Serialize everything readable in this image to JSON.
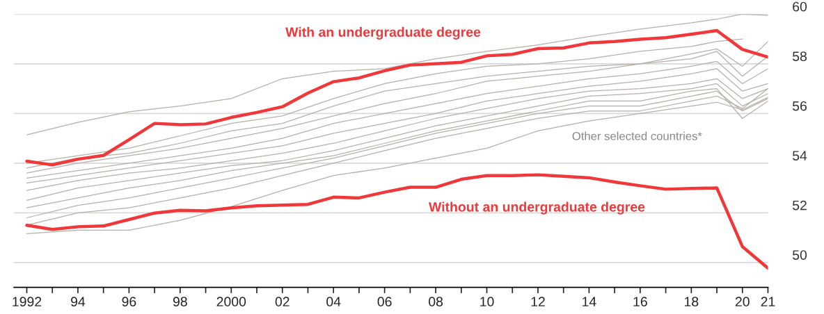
{
  "chart_data": {
    "type": "line",
    "x": [
      1992,
      1993,
      1994,
      1995,
      1996,
      1997,
      1998,
      1999,
      2000,
      2001,
      2002,
      2003,
      2004,
      2005,
      2006,
      2007,
      2008,
      2009,
      2010,
      2011,
      2012,
      2013,
      2014,
      2015,
      2016,
      2017,
      2018,
      2019,
      2020,
      2021
    ],
    "series": [
      {
        "color": "#b5b0a5",
        "x": [
          1992,
          1994,
          1996,
          1998,
          2000,
          2002,
          2004,
          2006,
          2008,
          2010,
          2012,
          2014,
          2016,
          2018,
          2019,
          2020,
          2021
        ],
        "values": [
          55.14,
          55.64,
          56.07,
          56.3,
          56.6,
          57.4,
          57.7,
          57.8,
          58.2,
          58.5,
          58.76,
          59.1,
          59.4,
          59.65,
          59.8,
          60.0,
          59.95
        ]
      },
      {
        "color": "#b5b0a5",
        "x": [
          1992,
          1994,
          1996,
          1998,
          2000,
          2002,
          2004,
          2006,
          2008,
          2010,
          2012,
          2014,
          2016,
          2018,
          2019,
          2020
        ],
        "values": [
          54.0,
          54.3,
          54.6,
          55.1,
          55.6,
          55.9,
          56.6,
          57.2,
          57.6,
          57.9,
          58.0,
          58.2,
          58.5,
          58.7,
          58.9,
          59.0
        ]
      },
      {
        "color": "#b5b0a5",
        "x": [
          1992,
          1994,
          1996,
          1998,
          2000,
          2002,
          2004,
          2006,
          2008,
          2010,
          2012,
          2014,
          2016,
          2018,
          2019,
          2020,
          2021
        ],
        "values": [
          53.8,
          54.2,
          54.4,
          54.8,
          55.3,
          55.6,
          56.3,
          56.9,
          57.2,
          57.5,
          57.7,
          57.9,
          58.0,
          58.4,
          58.6,
          57.9,
          58.9
        ]
      },
      {
        "color": "#b5b0a5",
        "x": [
          1992,
          1994,
          1996,
          1998,
          2000,
          2002,
          2004,
          2006,
          2008,
          2010,
          2012,
          2014,
          2016,
          2018,
          2019,
          2020,
          2021
        ],
        "values": [
          53.6,
          54.0,
          54.3,
          54.6,
          55.0,
          55.4,
          55.9,
          56.4,
          56.8,
          57.3,
          57.5,
          57.7,
          58.0,
          58.2,
          58.5,
          57.5,
          58.3
        ]
      },
      {
        "color": "#b5b0a5",
        "x": [
          1992,
          1994,
          1996,
          1998,
          2000,
          2002,
          2004,
          2006,
          2008,
          2010,
          2012,
          2014,
          2016,
          2018,
          2019,
          2020,
          2021
        ],
        "values": [
          53.4,
          53.7,
          54.0,
          54.3,
          54.6,
          55.0,
          55.6,
          56.0,
          56.4,
          56.8,
          57.1,
          57.4,
          57.6,
          57.9,
          58.1,
          57.2,
          57.8
        ]
      },
      {
        "color": "#b5b0a5",
        "x": [
          1992,
          1994,
          1996,
          1998,
          2000,
          2002,
          2004,
          2006,
          2008,
          2010,
          2012,
          2014,
          2016,
          2018,
          2019,
          2020,
          2021
        ],
        "values": [
          53.2,
          53.5,
          53.8,
          54.1,
          54.4,
          54.7,
          55.2,
          55.6,
          56.0,
          56.5,
          56.8,
          57.1,
          57.3,
          57.6,
          57.8,
          56.9,
          57.2
        ]
      },
      {
        "color": "#b5b0a5",
        "x": [
          1992,
          1994,
          1996,
          1998,
          2000,
          2002,
          2004,
          2006,
          2008,
          2010,
          2012,
          2014,
          2016,
          2018,
          2019,
          2020,
          2021
        ],
        "values": [
          52.9,
          53.3,
          53.6,
          53.8,
          54.1,
          54.4,
          54.8,
          55.3,
          55.8,
          56.2,
          56.6,
          56.9,
          57.0,
          57.2,
          57.4,
          56.6,
          57.0
        ]
      },
      {
        "color": "#b5b0a5",
        "x": [
          1992,
          1994,
          1996,
          1998,
          2000,
          2002,
          2004,
          2006,
          2008,
          2010,
          2012,
          2014,
          2016,
          2018,
          2019,
          2020,
          2021
        ],
        "values": [
          52.5,
          53.0,
          53.3,
          53.6,
          53.9,
          54.1,
          54.5,
          55.0,
          55.5,
          55.9,
          56.3,
          56.7,
          56.8,
          57.0,
          57.2,
          56.3,
          56.8
        ]
      },
      {
        "color": "#b5b0a5",
        "x": [
          1992,
          1994,
          1996,
          1998,
          2000,
          2002,
          2004,
          2006,
          2008,
          2010,
          2012,
          2014,
          2016,
          2018,
          2019,
          2020,
          2021
        ],
        "values": [
          52.2,
          52.6,
          53.0,
          53.3,
          53.7,
          54.0,
          54.3,
          54.8,
          55.3,
          55.7,
          56.1,
          56.5,
          56.5,
          56.9,
          57.0,
          55.8,
          56.5
        ]
      },
      {
        "color": "#b5b0a5",
        "x": [
          1992,
          1994,
          1996,
          1998,
          2000,
          2002,
          2004,
          2006,
          2008,
          2010,
          2012,
          2014,
          2016,
          2018,
          2019,
          2020,
          2021
        ],
        "values": [
          51.8,
          52.3,
          52.6,
          53.0,
          53.4,
          53.8,
          54.2,
          54.7,
          55.2,
          55.6,
          56.0,
          56.3,
          56.3,
          56.7,
          56.9,
          56.1,
          56.6
        ]
      },
      {
        "color": "#b5b0a5",
        "x": [
          1992,
          1994,
          1996,
          1998,
          2000,
          2002,
          2004,
          2006,
          2008,
          2010,
          2012,
          2014,
          2016,
          2018,
          2019,
          2020,
          2021
        ],
        "values": [
          51.5,
          52.0,
          52.2,
          52.6,
          53.0,
          53.5,
          54.0,
          54.5,
          55.0,
          55.4,
          55.8,
          56.1,
          56.1,
          56.5,
          56.7,
          56.2,
          57.0
        ]
      },
      {
        "color": "#b5b0a5",
        "x": [
          1992,
          1994,
          1996,
          1998,
          2000,
          2002,
          2004,
          2006,
          2008,
          2010,
          2012,
          2014,
          2016,
          2018,
          2019,
          2020,
          2021
        ],
        "values": [
          51.16,
          51.3,
          51.3,
          51.7,
          52.25,
          52.9,
          53.5,
          53.8,
          54.2,
          54.6,
          55.3,
          55.7,
          56.0,
          56.3,
          56.45,
          56.15,
          56.65
        ]
      },
      {
        "name": "With an undergraduate degree",
        "color": "#f0383a",
        "values": [
          54.08,
          53.93,
          54.16,
          54.31,
          54.94,
          55.6,
          55.55,
          55.58,
          55.84,
          56.04,
          56.27,
          56.82,
          57.28,
          57.43,
          57.72,
          57.95,
          58.0,
          58.06,
          58.32,
          58.38,
          58.61,
          58.64,
          58.84,
          58.9,
          58.99,
          59.05,
          59.19,
          59.34,
          58.58,
          58.27
        ]
      },
      {
        "name": "Without an undergraduate degree",
        "color": "#f0383a",
        "values": [
          51.5,
          51.33,
          51.44,
          51.47,
          51.73,
          51.99,
          52.1,
          52.08,
          52.2,
          52.28,
          52.31,
          52.34,
          52.63,
          52.6,
          52.83,
          53.03,
          53.03,
          53.35,
          53.5,
          53.5,
          53.53,
          53.47,
          53.41,
          53.24,
          53.09,
          52.95,
          52.98,
          53.0,
          50.64,
          49.77
        ]
      }
    ],
    "annotations": [
      "Other selected countries*"
    ],
    "xlim": [
      1991.5,
      2021
    ],
    "ylim": [
      49,
      60
    ],
    "xticks": [
      {
        "value": 1992,
        "label": "1992"
      },
      {
        "value": 1993,
        "label": null
      },
      {
        "value": 1994,
        "label": "94"
      },
      {
        "value": 1995,
        "label": null
      },
      {
        "value": 1996,
        "label": "96"
      },
      {
        "value": 1997,
        "label": null
      },
      {
        "value": 1998,
        "label": "98"
      },
      {
        "value": 1999,
        "label": null
      },
      {
        "value": 2000,
        "label": "2000"
      },
      {
        "value": 2001,
        "label": null
      },
      {
        "value": 2002,
        "label": "02"
      },
      {
        "value": 2003,
        "label": null
      },
      {
        "value": 2004,
        "label": "04"
      },
      {
        "value": 2005,
        "label": null
      },
      {
        "value": 2006,
        "label": "06"
      },
      {
        "value": 2007,
        "label": null
      },
      {
        "value": 2008,
        "label": "08"
      },
      {
        "value": 2009,
        "label": null
      },
      {
        "value": 2010,
        "label": "10"
      },
      {
        "value": 2011,
        "label": null
      },
      {
        "value": 2012,
        "label": "12"
      },
      {
        "value": 2013,
        "label": null
      },
      {
        "value": 2014,
        "label": "14"
      },
      {
        "value": 2015,
        "label": null
      },
      {
        "value": 2016,
        "label": "16"
      },
      {
        "value": 2017,
        "label": null
      },
      {
        "value": 2018,
        "label": "18"
      },
      {
        "value": 2019,
        "label": null
      },
      {
        "value": 2020,
        "label": "20"
      },
      {
        "value": 2021,
        "label": "21"
      }
    ],
    "yticks": [
      50,
      52,
      54,
      56,
      58,
      60
    ],
    "grid": "y"
  }
}
